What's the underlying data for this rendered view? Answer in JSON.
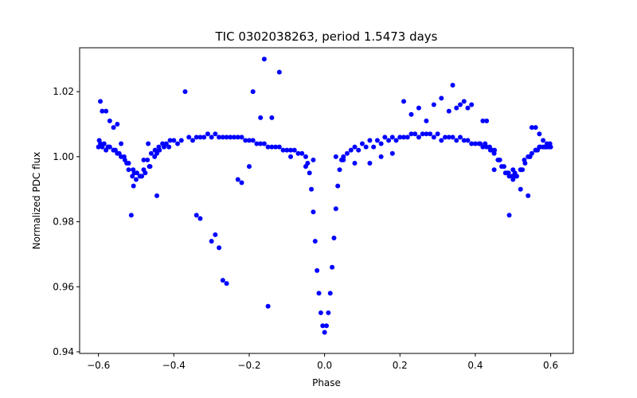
{
  "chart_data": {
    "type": "scatter",
    "title": "TIC 0302038263, period 1.5473 days",
    "xlabel": "Phase",
    "ylabel": "Normalized PDC flux",
    "xlim": [
      -0.65,
      0.66
    ],
    "ylim": [
      0.9395,
      1.0335
    ],
    "x_ticks": [
      -0.6,
      -0.4,
      -0.2,
      0.0,
      0.2,
      0.4,
      0.6
    ],
    "x_tick_labels": [
      "−0.6",
      "−0.4",
      "−0.2",
      "0.0",
      "0.2",
      "0.4",
      "0.6"
    ],
    "y_ticks": [
      0.94,
      0.96,
      0.98,
      1.0,
      1.02
    ],
    "y_tick_labels": [
      "0.94",
      "0.96",
      "0.98",
      "1.00",
      "1.02"
    ],
    "grid": false,
    "legend": "none",
    "marker_color": "#0000ff",
    "series": [
      {
        "x": [
          -0.6,
          -0.59,
          -0.58,
          -0.57,
          -0.56,
          -0.55,
          -0.54,
          -0.53,
          -0.52,
          -0.51,
          -0.5,
          -0.49,
          -0.48,
          -0.47,
          -0.46,
          -0.45,
          -0.44,
          -0.43,
          -0.42,
          -0.41,
          -0.4,
          -0.38,
          -0.36,
          -0.34,
          -0.32,
          -0.3,
          -0.28,
          -0.26,
          -0.24,
          -0.22,
          -0.2,
          -0.18,
          -0.16,
          -0.14,
          -0.12,
          -0.1,
          -0.08,
          -0.07,
          -0.06,
          -0.05,
          -0.045,
          -0.04,
          -0.035,
          -0.03,
          -0.025,
          -0.02,
          -0.015,
          -0.01,
          -0.005,
          0.0,
          0.005,
          0.01,
          0.015,
          0.02,
          0.025,
          0.03,
          0.035,
          0.04,
          0.045,
          0.05,
          0.06,
          0.07,
          0.08,
          0.1,
          0.12,
          0.14,
          0.16,
          0.18,
          0.2,
          0.22,
          0.24,
          0.26,
          0.28,
          0.3,
          0.32,
          0.34,
          0.36,
          0.38,
          0.4,
          0.41,
          0.42,
          0.43,
          0.44,
          0.45,
          0.46,
          0.47,
          0.48,
          0.49,
          0.5,
          0.51,
          0.52,
          0.53,
          0.54,
          0.55,
          0.56,
          0.57,
          0.58,
          0.59,
          0.6,
          -0.595,
          -0.575,
          -0.555,
          -0.525,
          -0.505,
          -0.485,
          -0.465,
          -0.445,
          -0.39,
          -0.35,
          -0.33,
          -0.31,
          -0.29,
          -0.27,
          -0.25,
          -0.23,
          -0.21,
          -0.19,
          -0.17,
          -0.15,
          -0.13,
          -0.11,
          -0.09,
          0.09,
          0.11,
          0.13,
          0.15,
          0.17,
          0.19,
          0.21,
          0.23,
          0.25,
          0.27,
          0.29,
          0.31,
          0.33,
          0.35,
          0.37,
          0.39,
          0.445,
          0.465,
          0.485,
          0.505,
          0.525,
          0.545,
          0.565,
          0.585,
          0.595,
          -0.598,
          -0.585,
          -0.573,
          -0.56,
          -0.545,
          -0.532,
          -0.52,
          -0.508,
          -0.498,
          -0.488,
          -0.476,
          -0.463,
          -0.451,
          -0.438,
          -0.426,
          -0.413,
          0.413,
          0.426,
          0.438,
          0.451,
          0.463,
          0.476,
          0.488,
          0.498,
          0.508,
          0.52,
          0.532,
          0.545,
          0.56,
          0.573,
          0.585,
          0.598,
          -0.595,
          -0.59,
          -0.58,
          -0.57,
          -0.56,
          -0.55,
          -0.54,
          -0.513,
          -0.507,
          -0.48,
          -0.468,
          -0.445,
          -0.37,
          -0.34,
          -0.33,
          -0.3,
          -0.29,
          -0.28,
          -0.27,
          -0.26,
          -0.23,
          -0.22,
          -0.2,
          -0.19,
          -0.17,
          -0.16,
          -0.15,
          -0.14,
          -0.12,
          -0.09,
          -0.05,
          -0.03,
          0.03,
          0.05,
          0.08,
          0.12,
          0.15,
          0.18,
          0.21,
          0.23,
          0.25,
          0.27,
          0.29,
          0.31,
          0.33,
          0.34,
          0.35,
          0.36,
          0.37,
          0.38,
          0.39,
          0.42,
          0.43,
          0.45,
          0.49,
          0.5,
          0.52,
          0.54,
          0.55,
          0.56,
          0.57,
          0.58,
          0.59
        ],
        "y": [
          1.003,
          1.003,
          1.002,
          1.003,
          1.002,
          1.001,
          1.0,
          0.999,
          0.996,
          0.994,
          0.993,
          0.994,
          0.996,
          0.999,
          1.001,
          1.002,
          1.003,
          1.004,
          1.004,
          1.005,
          1.005,
          1.005,
          1.006,
          1.006,
          1.006,
          1.006,
          1.006,
          1.006,
          1.006,
          1.006,
          1.005,
          1.004,
          1.004,
          1.003,
          1.003,
          1.002,
          1.002,
          1.001,
          1.001,
          1.0,
          0.998,
          0.995,
          0.99,
          0.983,
          0.974,
          0.965,
          0.958,
          0.952,
          0.948,
          0.946,
          0.948,
          0.952,
          0.958,
          0.966,
          0.975,
          0.984,
          0.991,
          0.996,
          0.999,
          1.0,
          1.001,
          1.002,
          1.003,
          1.004,
          1.005,
          1.005,
          1.006,
          1.006,
          1.006,
          1.006,
          1.007,
          1.007,
          1.007,
          1.007,
          1.006,
          1.006,
          1.006,
          1.005,
          1.004,
          1.004,
          1.003,
          1.003,
          1.002,
          1.001,
          0.999,
          0.997,
          0.995,
          0.994,
          0.993,
          0.994,
          0.996,
          0.999,
          1.0,
          1.001,
          1.002,
          1.003,
          1.003,
          1.003,
          1.003,
          1.004,
          1.003,
          1.002,
          0.998,
          0.995,
          0.994,
          0.997,
          1.001,
          1.004,
          1.005,
          1.006,
          1.007,
          1.007,
          1.006,
          1.006,
          1.006,
          1.005,
          1.005,
          1.004,
          1.003,
          1.003,
          1.002,
          1.002,
          1.002,
          1.003,
          1.003,
          1.004,
          1.005,
          1.005,
          1.006,
          1.007,
          1.006,
          1.007,
          1.006,
          1.005,
          1.006,
          1.005,
          1.005,
          1.004,
          1.002,
          0.999,
          0.995,
          0.995,
          0.996,
          1.0,
          1.002,
          1.003,
          1.003,
          1.005,
          1.004,
          1.003,
          1.002,
          1.001,
          1.0,
          0.998,
          0.996,
          0.995,
          0.994,
          0.995,
          0.997,
          1.0,
          1.002,
          1.003,
          1.003,
          1.004,
          1.004,
          1.003,
          1.002,
          0.999,
          0.997,
          0.995,
          0.994,
          0.994,
          0.996,
          0.998,
          1.0,
          1.002,
          1.003,
          1.003,
          1.004,
          1.017,
          1.014,
          1.014,
          1.011,
          1.009,
          1.01,
          1.004,
          0.982,
          0.991,
          0.999,
          1.004,
          0.988,
          1.02,
          0.982,
          0.981,
          0.974,
          0.976,
          0.972,
          0.962,
          0.961,
          0.993,
          0.992,
          0.997,
          1.02,
          1.012,
          1.03,
          0.954,
          1.012,
          1.026,
          1.0,
          0.997,
          0.999,
          1.0,
          0.999,
          0.998,
          0.998,
          1.0,
          1.001,
          1.017,
          1.013,
          1.015,
          1.011,
          1.016,
          1.018,
          1.014,
          1.022,
          1.015,
          1.016,
          1.017,
          1.015,
          1.016,
          1.011,
          1.011,
          0.996,
          0.982,
          0.996,
          0.99,
          0.988,
          1.009,
          1.009,
          1.007,
          1.005,
          1.004
        ]
      }
    ]
  }
}
